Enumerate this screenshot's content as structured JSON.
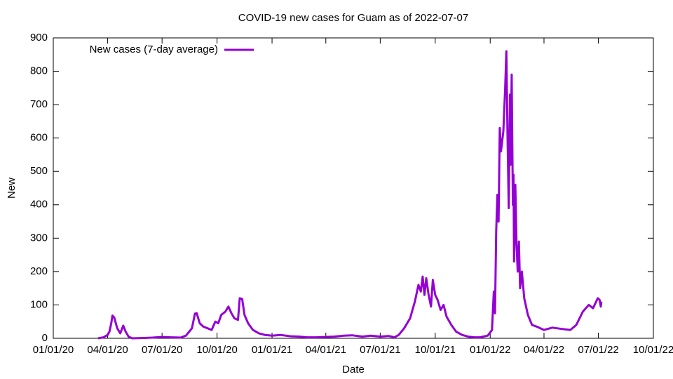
{
  "chart_data": {
    "type": "line",
    "title": "COVID-19 new cases for Guam as of 2022-07-07",
    "x_label": "Date",
    "y_label": "New",
    "legend": "top-left",
    "xlim": [
      "2020-01-01",
      "2022-10-01"
    ],
    "xticks": [
      {
        "value": "2020-01-01",
        "label": "01/01/20"
      },
      {
        "value": "2020-04-01",
        "label": "04/01/20"
      },
      {
        "value": "2020-07-01",
        "label": "07/01/20"
      },
      {
        "value": "2020-10-01",
        "label": "10/01/20"
      },
      {
        "value": "2021-01-01",
        "label": "01/01/21"
      },
      {
        "value": "2021-04-01",
        "label": "04/01/21"
      },
      {
        "value": "2021-07-01",
        "label": "07/01/21"
      },
      {
        "value": "2021-10-01",
        "label": "10/01/21"
      },
      {
        "value": "2022-01-01",
        "label": "01/01/22"
      },
      {
        "value": "2022-04-01",
        "label": "04/01/22"
      },
      {
        "value": "2022-07-01",
        "label": "07/01/22"
      },
      {
        "value": "2022-10-01",
        "label": "10/01/22"
      }
    ],
    "ylim": [
      0,
      900
    ],
    "yticks": [
      0,
      100,
      200,
      300,
      400,
      500,
      600,
      700,
      800,
      900
    ],
    "x": [
      "2020-03-16",
      "2020-03-25",
      "2020-04-01",
      "2020-04-04",
      "2020-04-07",
      "2020-04-09",
      "2020-04-12",
      "2020-04-17",
      "2020-04-22",
      "2020-04-27",
      "2020-05-01",
      "2020-05-06",
      "2020-05-12",
      "2020-06-01",
      "2020-06-15",
      "2020-07-01",
      "2020-07-15",
      "2020-08-01",
      "2020-08-10",
      "2020-08-20",
      "2020-08-25",
      "2020-08-28",
      "2020-09-02",
      "2020-09-08",
      "2020-09-15",
      "2020-09-22",
      "2020-09-28",
      "2020-10-03",
      "2020-10-08",
      "2020-10-15",
      "2020-10-20",
      "2020-10-25",
      "2020-10-30",
      "2020-11-05",
      "2020-11-08",
      "2020-11-12",
      "2020-11-16",
      "2020-11-22",
      "2020-11-30",
      "2020-12-10",
      "2020-12-20",
      "2021-01-01",
      "2021-01-15",
      "2021-02-01",
      "2021-02-15",
      "2021-03-01",
      "2021-03-15",
      "2021-04-01",
      "2021-04-15",
      "2021-05-01",
      "2021-05-15",
      "2021-06-01",
      "2021-06-15",
      "2021-07-01",
      "2021-07-15",
      "2021-07-25",
      "2021-08-01",
      "2021-08-10",
      "2021-08-20",
      "2021-08-28",
      "2021-09-03",
      "2021-09-07",
      "2021-09-10",
      "2021-09-13",
      "2021-09-16",
      "2021-09-20",
      "2021-09-24",
      "2021-09-27",
      "2021-10-01",
      "2021-10-05",
      "2021-10-10",
      "2021-10-15",
      "2021-10-20",
      "2021-10-28",
      "2021-11-05",
      "2021-11-15",
      "2021-11-25",
      "2021-12-05",
      "2021-12-15",
      "2021-12-28",
      "2022-01-04",
      "2022-01-07",
      "2022-01-09",
      "2022-01-11",
      "2022-01-13",
      "2022-01-15",
      "2022-01-17",
      "2022-01-19",
      "2022-01-23",
      "2022-01-26",
      "2022-01-28",
      "2022-01-30",
      "2022-02-01",
      "2022-02-03",
      "2022-02-04",
      "2022-02-06",
      "2022-02-08",
      "2022-02-09",
      "2022-02-10",
      "2022-02-12",
      "2022-02-14",
      "2022-02-16",
      "2022-02-18",
      "2022-02-20",
      "2022-02-23",
      "2022-02-27",
      "2022-03-05",
      "2022-03-12",
      "2022-03-20",
      "2022-04-01",
      "2022-04-15",
      "2022-05-01",
      "2022-05-15",
      "2022-05-25",
      "2022-06-05",
      "2022-06-15",
      "2022-06-22",
      "2022-06-30",
      "2022-07-03",
      "2022-07-05",
      "2022-07-06"
    ],
    "series": [
      {
        "name": "New cases (7-day average)",
        "color": "#9400d3",
        "values": [
          0,
          3,
          10,
          20,
          45,
          68,
          62,
          30,
          15,
          38,
          20,
          5,
          0,
          1,
          2,
          4,
          3,
          2,
          8,
          30,
          74,
          75,
          45,
          35,
          30,
          25,
          50,
          45,
          70,
          80,
          95,
          75,
          60,
          55,
          120,
          118,
          70,
          45,
          25,
          15,
          10,
          8,
          10,
          6,
          5,
          3,
          3,
          4,
          5,
          8,
          9,
          5,
          8,
          5,
          7,
          3,
          10,
          30,
          60,
          110,
          160,
          140,
          185,
          130,
          180,
          130,
          95,
          175,
          130,
          115,
          85,
          100,
          65,
          40,
          20,
          10,
          5,
          3,
          3,
          8,
          25,
          140,
          75,
          320,
          430,
          350,
          630,
          560,
          620,
          750,
          860,
          600,
          390,
          730,
          520,
          790,
          400,
          490,
          230,
          460,
          280,
          200,
          290,
          150,
          200,
          120,
          70,
          40,
          35,
          25,
          32,
          28,
          25,
          40,
          80,
          100,
          90,
          120,
          115,
          95,
          110
        ]
      }
    ]
  }
}
